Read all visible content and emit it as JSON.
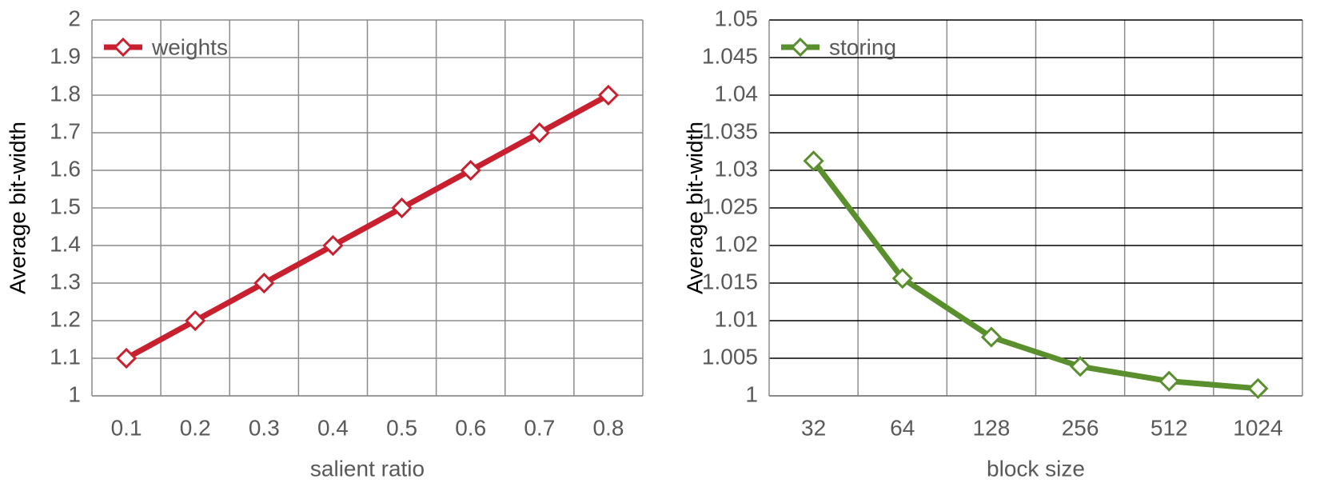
{
  "chart_data": [
    {
      "type": "line",
      "x_label": "salient ratio",
      "y_label": "Average bit-width",
      "categories": [
        "0.1",
        "0.2",
        "0.3",
        "0.4",
        "0.5",
        "0.6",
        "0.7",
        "0.8"
      ],
      "series": [
        {
          "name": "weights",
          "color": "#c8202f",
          "values": [
            1.1,
            1.2,
            1.3,
            1.4,
            1.5,
            1.6,
            1.7,
            1.8
          ]
        }
      ],
      "ylim": [
        1,
        2
      ],
      "yticks": [
        1,
        1.1,
        1.2,
        1.3,
        1.4,
        1.5,
        1.6,
        1.7,
        1.8,
        1.9,
        2
      ],
      "grid": true,
      "grid_color": "#8c8c8c",
      "legend": "top-left"
    },
    {
      "type": "line",
      "x_label": "block size",
      "y_label": "Average bit-width",
      "categories": [
        "32",
        "64",
        "128",
        "256",
        "512",
        "1024"
      ],
      "series": [
        {
          "name": "storing",
          "color": "#5a8f2e",
          "values": [
            1.03125,
            1.015625,
            1.0078125,
            1.00390625,
            1.001953125,
            1.0009765625
          ]
        }
      ],
      "ylim": [
        1,
        1.05
      ],
      "yticks": [
        1,
        1.005,
        1.01,
        1.015,
        1.02,
        1.025,
        1.03,
        1.035,
        1.04,
        1.045,
        1.05
      ],
      "grid": true,
      "grid_color": "#000000",
      "legend": "top-left"
    }
  ]
}
